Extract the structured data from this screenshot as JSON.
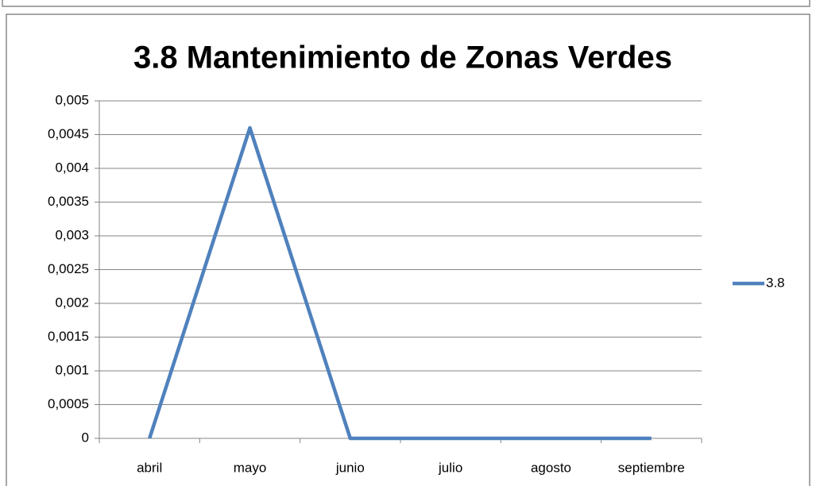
{
  "chart_data": {
    "type": "line",
    "title": "3.8 Mantenimiento de Zonas Verdes",
    "categories": [
      "abril",
      "mayo",
      "junio",
      "julio",
      "agosto",
      "septiembre"
    ],
    "series": [
      {
        "name": "3.8",
        "color": "#4f81bd",
        "values": [
          0,
          0.0046,
          0,
          0,
          0,
          0
        ]
      }
    ],
    "ylim": [
      0,
      0.005
    ],
    "yticks": [
      0,
      {
        "value": 0.0005,
        "label": "0,0005"
      },
      {
        "value": 0.001,
        "label": "0,001"
      },
      {
        "value": 0.0015,
        "label": "0,0015"
      },
      {
        "value": 0.002,
        "label": "0,002"
      },
      {
        "value": 0.0025,
        "label": "0,0025"
      },
      {
        "value": 0.003,
        "label": "0,003"
      },
      {
        "value": 0.0035,
        "label": "0,0035"
      },
      {
        "value": 0.004,
        "label": "0,004"
      },
      {
        "value": 0.0045,
        "label": "0,0045"
      },
      {
        "value": 0.005,
        "label": "0,005"
      }
    ],
    "grid": true,
    "legend": "right"
  }
}
